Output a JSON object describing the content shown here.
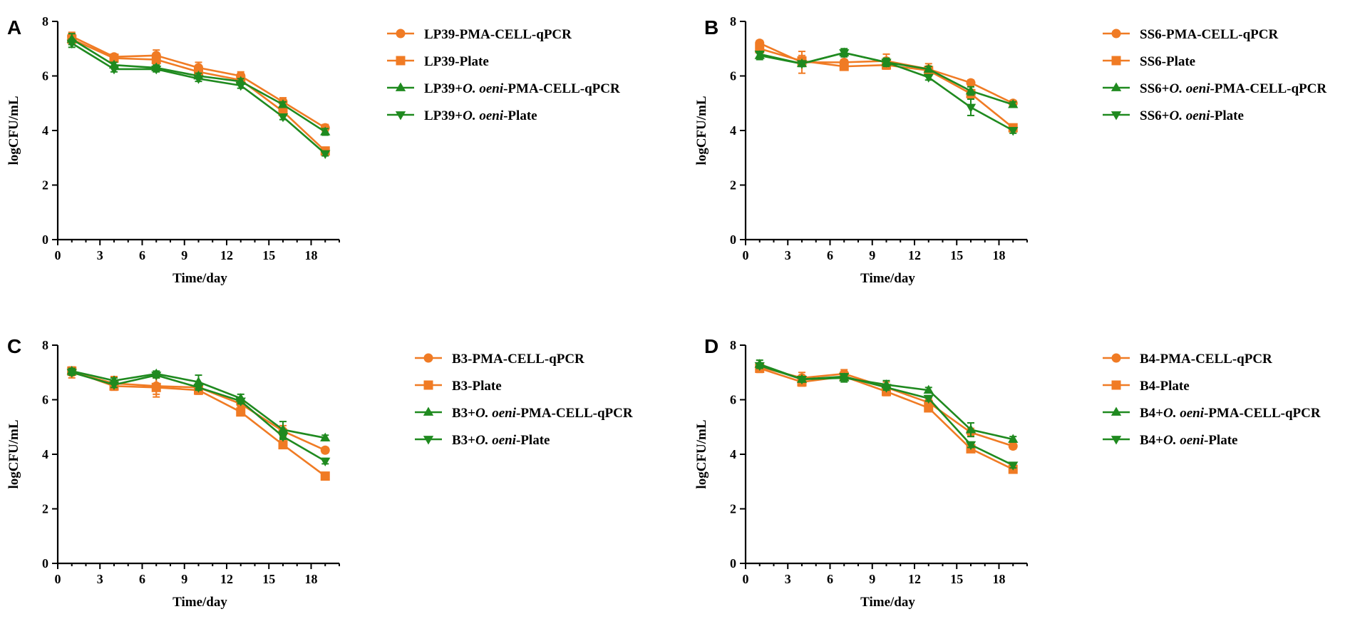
{
  "colors": {
    "orange": "#f07b24",
    "green": "#1f8a1f",
    "axis": "#000000"
  },
  "chart_data": [
    {
      "type": "line",
      "panel": "A",
      "xlabel": "Time/day",
      "ylabel": "logCFU/mL",
      "xlim": [
        0,
        20
      ],
      "ylim": [
        0,
        8
      ],
      "xticks": [
        "0",
        "3",
        "6",
        "9",
        "12",
        "15",
        "18"
      ],
      "yticks": [
        "0",
        "2",
        "4",
        "6",
        "8"
      ],
      "x": [
        1,
        4,
        7,
        10,
        13,
        16,
        19
      ],
      "series": [
        {
          "name": "LP39-PMA-CELL-qPCR",
          "label_parts": [
            "LP39-PMA-CELL-qPCR"
          ],
          "color": "#f07b24",
          "marker": "circle",
          "values": [
            7.45,
            6.7,
            6.75,
            6.3,
            6.0,
            5.05,
            4.1
          ],
          "errors": [
            0.15,
            0.1,
            0.2,
            0.2,
            0.15,
            0.15,
            0.12
          ]
        },
        {
          "name": "LP39-Plate",
          "label_parts": [
            "LP39-Plate"
          ],
          "color": "#f07b24",
          "marker": "square",
          "values": [
            7.35,
            6.65,
            6.6,
            6.15,
            5.85,
            4.7,
            3.25
          ],
          "errors": [
            0.2,
            0.1,
            0.15,
            0.15,
            0.1,
            0.15,
            0.1
          ]
        },
        {
          "name": "LP39+O. oeni-PMA-CELL-qPCR",
          "label_parts": [
            "LP39+",
            "O. oeni",
            "-PMA-CELL-qPCR"
          ],
          "color": "#1f8a1f",
          "marker": "triangle-up",
          "values": [
            7.35,
            6.4,
            6.3,
            6.0,
            5.8,
            4.95,
            3.95
          ],
          "errors": [
            0.2,
            0.1,
            0.1,
            0.1,
            0.1,
            0.1,
            0.12
          ]
        },
        {
          "name": "LP39+O. oeni-Plate",
          "label_parts": [
            "LP39+",
            "O. oeni",
            "-Plate"
          ],
          "color": "#1f8a1f",
          "marker": "triangle-down",
          "values": [
            7.2,
            6.25,
            6.25,
            5.9,
            5.65,
            4.5,
            3.15
          ],
          "errors": [
            0.15,
            0.1,
            0.1,
            0.1,
            0.1,
            0.1,
            0.08
          ]
        }
      ]
    },
    {
      "type": "line",
      "panel": "B",
      "xlabel": "Time/day",
      "ylabel": "logCFU/mL",
      "xlim": [
        0,
        20
      ],
      "ylim": [
        0,
        8
      ],
      "xticks": [
        "0",
        "3",
        "6",
        "9",
        "12",
        "15",
        "18"
      ],
      "yticks": [
        "0",
        "2",
        "4",
        "6",
        "8"
      ],
      "x": [
        1,
        4,
        7,
        10,
        13,
        16,
        19
      ],
      "series": [
        {
          "name": "SS6-PMA-CELL-qPCR",
          "label_parts": [
            "SS6-PMA-CELL-qPCR"
          ],
          "color": "#f07b24",
          "marker": "circle",
          "values": [
            7.2,
            6.5,
            6.5,
            6.55,
            6.25,
            5.75,
            5.0
          ],
          "errors": [
            0.1,
            0.4,
            0.1,
            0.25,
            0.2,
            0.1,
            0.1
          ]
        },
        {
          "name": "SS6-Plate",
          "label_parts": [
            "SS6-Plate"
          ],
          "color": "#f07b24",
          "marker": "square",
          "values": [
            7.0,
            6.55,
            6.35,
            6.4,
            6.2,
            5.35,
            4.1
          ],
          "errors": [
            0.15,
            0.2,
            0.1,
            0.15,
            0.15,
            0.15,
            0.1
          ]
        },
        {
          "name": "SS6+O. oeni-PMA-CELL-qPCR",
          "label_parts": [
            "SS6+",
            "O. oeni",
            "-PMA-CELL-qPCR"
          ],
          "color": "#1f8a1f",
          "marker": "triangle-up",
          "values": [
            6.75,
            6.45,
            6.85,
            6.5,
            6.25,
            5.45,
            4.95
          ],
          "errors": [
            0.15,
            0.1,
            0.15,
            0.15,
            0.1,
            0.15,
            0.1
          ]
        },
        {
          "name": "SS6+O. oeni-Plate",
          "label_parts": [
            "SS6+",
            "O. oeni",
            "-Plate"
          ],
          "color": "#1f8a1f",
          "marker": "triangle-down",
          "values": [
            6.8,
            6.45,
            6.85,
            6.5,
            5.95,
            4.85,
            4.0
          ],
          "errors": [
            0.1,
            0.1,
            0.1,
            0.1,
            0.1,
            0.3,
            0.1
          ]
        }
      ]
    },
    {
      "type": "line",
      "panel": "C",
      "xlabel": "Time/day",
      "ylabel": "logCFU/mL",
      "xlim": [
        0,
        20
      ],
      "ylim": [
        0,
        8
      ],
      "xticks": [
        "0",
        "3",
        "6",
        "9",
        "12",
        "15",
        "18"
      ],
      "yticks": [
        "0",
        "2",
        "4",
        "6",
        "8"
      ],
      "x": [
        1,
        4,
        7,
        10,
        13,
        16,
        19
      ],
      "series": [
        {
          "name": "B3-PMA-CELL-qPCR",
          "label_parts": [
            "B3-PMA-CELL-qPCR"
          ],
          "color": "#f07b24",
          "marker": "circle",
          "values": [
            7.0,
            6.6,
            6.5,
            6.45,
            5.85,
            4.85,
            4.15
          ],
          "errors": [
            0.2,
            0.25,
            0.3,
            0.15,
            0.15,
            0.2,
            0.1
          ]
        },
        {
          "name": "B3-Plate",
          "label_parts": [
            "B3-Plate"
          ],
          "color": "#f07b24",
          "marker": "square",
          "values": [
            7.05,
            6.5,
            6.45,
            6.35,
            5.55,
            4.35,
            3.2
          ],
          "errors": [
            0.15,
            0.15,
            0.35,
            0.15,
            0.1,
            0.1,
            0.1
          ]
        },
        {
          "name": "B3+O. oeni-PMA-CELL-qPCR",
          "label_parts": [
            "B3+",
            "O. oeni",
            "-PMA-CELL-qPCR"
          ],
          "color": "#1f8a1f",
          "marker": "triangle-up",
          "values": [
            7.05,
            6.7,
            6.95,
            6.65,
            6.05,
            4.9,
            4.6
          ],
          "errors": [
            0.1,
            0.1,
            0.1,
            0.25,
            0.15,
            0.3,
            0.1
          ]
        },
        {
          "name": "B3+O. oeni-Plate",
          "label_parts": [
            "B3+",
            "O. oeni",
            "-Plate"
          ],
          "color": "#1f8a1f",
          "marker": "triangle-down",
          "values": [
            7.0,
            6.55,
            6.9,
            6.45,
            5.95,
            4.65,
            3.75
          ],
          "errors": [
            0.1,
            0.1,
            0.1,
            0.1,
            0.1,
            0.1,
            0.1
          ]
        }
      ]
    },
    {
      "type": "line",
      "panel": "D",
      "xlabel": "Time/day",
      "ylabel": "logCFU/mL",
      "xlim": [
        0,
        20
      ],
      "ylim": [
        0,
        8
      ],
      "xticks": [
        "0",
        "3",
        "6",
        "9",
        "12",
        "15",
        "18"
      ],
      "yticks": [
        "0",
        "2",
        "4",
        "6",
        "8"
      ],
      "x": [
        1,
        4,
        7,
        10,
        13,
        16,
        19
      ],
      "series": [
        {
          "name": "B4-PMA-CELL-qPCR",
          "label_parts": [
            "B4-PMA-CELL-qPCR"
          ],
          "color": "#f07b24",
          "marker": "circle",
          "values": [
            7.2,
            6.8,
            6.95,
            6.45,
            5.9,
            4.8,
            4.3
          ],
          "errors": [
            0.15,
            0.2,
            0.15,
            0.2,
            0.15,
            0.15,
            0.1
          ]
        },
        {
          "name": "B4-Plate",
          "label_parts": [
            "B4-Plate"
          ],
          "color": "#f07b24",
          "marker": "square",
          "values": [
            7.15,
            6.65,
            6.85,
            6.3,
            5.7,
            4.2,
            3.45
          ],
          "errors": [
            0.15,
            0.15,
            0.1,
            0.15,
            0.1,
            0.1,
            0.1
          ]
        },
        {
          "name": "B4+O. oeni-PMA-CELL-qPCR",
          "label_parts": [
            "B4+",
            "O. oeni",
            "-PMA-CELL-qPCR"
          ],
          "color": "#1f8a1f",
          "marker": "triangle-up",
          "values": [
            7.3,
            6.75,
            6.8,
            6.55,
            6.35,
            4.9,
            4.55
          ],
          "errors": [
            0.15,
            0.1,
            0.15,
            0.15,
            0.1,
            0.25,
            0.1
          ]
        },
        {
          "name": "B4+O. oeni-Plate",
          "label_parts": [
            "B4+",
            "O. oeni",
            "-Plate"
          ],
          "color": "#1f8a1f",
          "marker": "triangle-down",
          "values": [
            7.25,
            6.75,
            6.85,
            6.45,
            6.05,
            4.35,
            3.6
          ],
          "errors": [
            0.1,
            0.1,
            0.1,
            0.1,
            0.1,
            0.1,
            0.1
          ]
        }
      ]
    }
  ]
}
